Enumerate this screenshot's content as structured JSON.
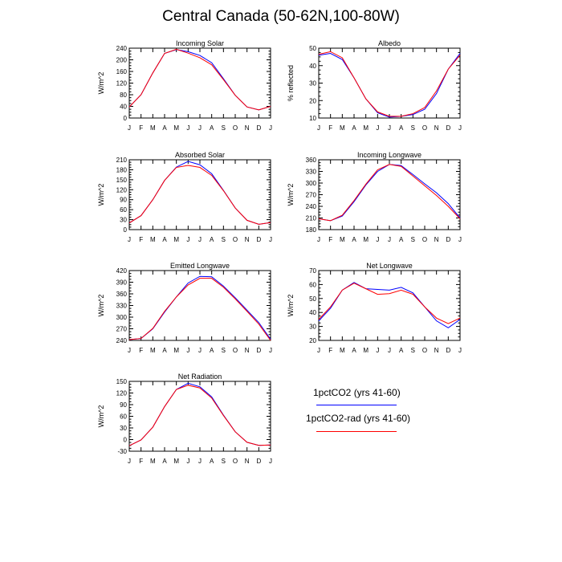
{
  "title": "Central Canada (50-62N,100-80W)",
  "colors": {
    "series0": "#0000ff",
    "series1": "#ff0000",
    "axis": "#000000"
  },
  "legend": [
    {
      "name": "1pctCO2 (yrs 41-60)",
      "color": "#0000ff"
    },
    {
      "name": "1pctCO2-rad (yrs 41-60)",
      "color": "#ff0000"
    }
  ],
  "chart_data": [
    {
      "type": "line",
      "title": "Incoming Solar",
      "xlabel": "",
      "ylabel": "W/m^2",
      "categories": [
        "J",
        "F",
        "M",
        "A",
        "M",
        "J",
        "J",
        "A",
        "S",
        "O",
        "N",
        "D",
        "J"
      ],
      "ylim": [
        0,
        240
      ],
      "yticks": [
        0,
        40,
        80,
        120,
        160,
        200,
        240
      ],
      "series": [
        {
          "name": "1pctCO2 (yrs 41-60)",
          "color": "#0000ff",
          "values": [
            38,
            80,
            155,
            222,
            235,
            228,
            215,
            190,
            135,
            78,
            38,
            28,
            40
          ]
        },
        {
          "name": "1pctCO2-rad (yrs 41-60)",
          "color": "#ff0000",
          "values": [
            38,
            80,
            155,
            222,
            236,
            223,
            207,
            183,
            132,
            78,
            38,
            28,
            40
          ]
        }
      ]
    },
    {
      "type": "line",
      "title": "Albedo",
      "xlabel": "",
      "ylabel": "% reflected",
      "categories": [
        "J",
        "F",
        "M",
        "A",
        "M",
        "J",
        "J",
        "A",
        "S",
        "O",
        "N",
        "D",
        "J"
      ],
      "ylim": [
        10,
        50
      ],
      "yticks": [
        10,
        20,
        30,
        40,
        50
      ],
      "series": [
        {
          "name": "1pctCO2 (yrs 41-60)",
          "color": "#0000ff",
          "values": [
            46,
            47,
            43.5,
            33,
            21,
            13,
            10.5,
            11,
            12,
            15,
            24,
            38,
            47
          ]
        },
        {
          "name": "1pctCO2-rad (yrs 41-60)",
          "color": "#ff0000",
          "values": [
            46.5,
            48,
            44.5,
            33,
            21,
            13.5,
            11,
            11,
            12.5,
            16,
            25.5,
            38,
            46
          ]
        }
      ]
    },
    {
      "type": "line",
      "title": "Absorbed Solar",
      "xlabel": "",
      "ylabel": "W/m^2",
      "categories": [
        "J",
        "F",
        "M",
        "A",
        "M",
        "J",
        "J",
        "A",
        "S",
        "O",
        "N",
        "D",
        "J"
      ],
      "ylim": [
        0,
        210
      ],
      "yticks": [
        0,
        30,
        60,
        90,
        120,
        150,
        180,
        210
      ],
      "series": [
        {
          "name": "1pctCO2 (yrs 41-60)",
          "color": "#0000ff",
          "values": [
            20,
            42,
            90,
            148,
            188,
            205,
            195,
            168,
            118,
            65,
            28,
            16,
            21
          ]
        },
        {
          "name": "1pctCO2-rad (yrs 41-60)",
          "color": "#ff0000",
          "values": [
            20,
            42,
            90,
            148,
            187,
            193,
            187,
            163,
            117,
            65,
            28,
            16,
            21
          ]
        }
      ]
    },
    {
      "type": "line",
      "title": "Incoming Longwave",
      "xlabel": "",
      "ylabel": "W/m^2",
      "categories": [
        "J",
        "F",
        "M",
        "A",
        "M",
        "J",
        "J",
        "A",
        "S",
        "O",
        "N",
        "D",
        "J"
      ],
      "ylim": [
        180,
        360
      ],
      "yticks": [
        180,
        210,
        240,
        270,
        300,
        330,
        360
      ],
      "series": [
        {
          "name": "1pctCO2 (yrs 41-60)",
          "color": "#0000ff",
          "values": [
            208,
            203,
            215,
            252,
            295,
            330,
            348,
            345,
            322,
            298,
            275,
            247,
            210
          ]
        },
        {
          "name": "1pctCO2-rad (yrs 41-60)",
          "color": "#ff0000",
          "values": [
            208,
            203,
            217,
            255,
            297,
            334,
            348,
            343,
            318,
            293,
            268,
            240,
            208
          ]
        }
      ]
    },
    {
      "type": "line",
      "title": "Emitted Longwave",
      "xlabel": "",
      "ylabel": "W/m^2",
      "categories": [
        "J",
        "F",
        "M",
        "A",
        "M",
        "J",
        "J",
        "A",
        "S",
        "O",
        "N",
        "D",
        "J"
      ],
      "ylim": [
        240,
        420
      ],
      "yticks": [
        240,
        270,
        300,
        330,
        360,
        390,
        420
      ],
      "series": [
        {
          "name": "1pctCO2 (yrs 41-60)",
          "color": "#0000ff",
          "values": [
            242,
            245,
            270,
            313,
            352,
            388,
            405,
            404,
            380,
            350,
            318,
            286,
            243
          ]
        },
        {
          "name": "1pctCO2-rad (yrs 41-60)",
          "color": "#ff0000",
          "values": [
            242,
            245,
            271,
            315,
            352,
            383,
            400,
            400,
            377,
            347,
            315,
            282,
            240
          ]
        }
      ]
    },
    {
      "type": "line",
      "title": "Net Longwave",
      "xlabel": "",
      "ylabel": "W/m^2",
      "categories": [
        "J",
        "F",
        "M",
        "A",
        "M",
        "J",
        "J",
        "A",
        "S",
        "O",
        "N",
        "D",
        "J"
      ],
      "ylim": [
        20,
        70
      ],
      "yticks": [
        20,
        30,
        40,
        50,
        60,
        70
      ],
      "series": [
        {
          "name": "1pctCO2 (yrs 41-60)",
          "color": "#0000ff",
          "values": [
            34,
            43,
            56,
            61.5,
            57,
            56.5,
            56,
            58,
            54,
            44,
            34,
            29,
            35
          ]
        },
        {
          "name": "1pctCO2-rad (yrs 41-60)",
          "color": "#ff0000",
          "values": [
            35,
            44,
            56,
            61,
            57,
            53,
            53.5,
            56,
            53,
            44,
            36,
            32,
            36
          ]
        }
      ]
    },
    {
      "type": "line",
      "title": "Net Radiation",
      "xlabel": "",
      "ylabel": "W/m^2",
      "categories": [
        "J",
        "F",
        "M",
        "A",
        "M",
        "J",
        "J",
        "A",
        "S",
        "O",
        "N",
        "D",
        "J"
      ],
      "ylim": [
        -30,
        150
      ],
      "yticks": [
        -30,
        0,
        30,
        60,
        90,
        120,
        150
      ],
      "series": [
        {
          "name": "1pctCO2 (yrs 41-60)",
          "color": "#0000ff",
          "values": [
            -16,
            -1,
            32,
            85,
            129,
            145,
            136,
            110,
            63,
            20,
            -7,
            -15,
            -14
          ]
        },
        {
          "name": "1pctCO2-rad (yrs 41-60)",
          "color": "#ff0000",
          "values": [
            -16,
            -1,
            32,
            85,
            129,
            140,
            133,
            107,
            62,
            20,
            -7,
            -15,
            -14
          ]
        }
      ]
    }
  ]
}
